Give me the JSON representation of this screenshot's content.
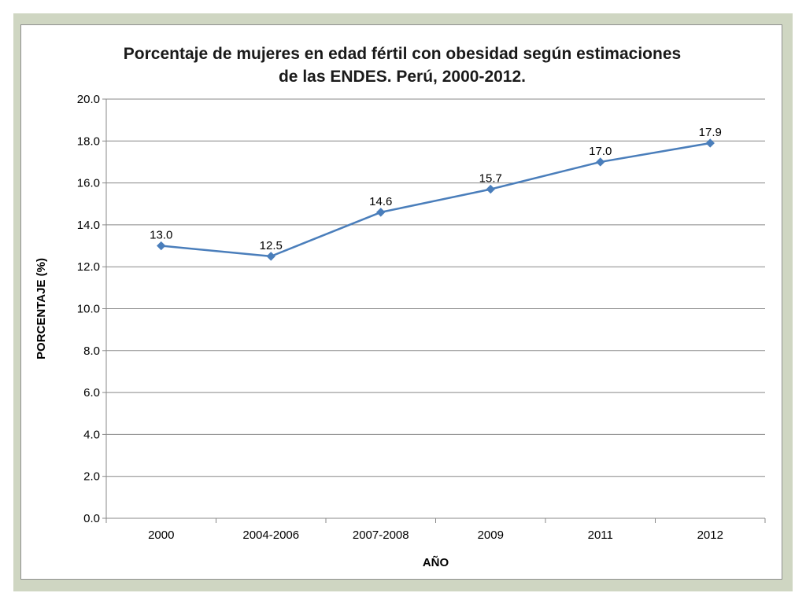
{
  "chart_data": {
    "type": "line",
    "title_lines": [
      "Porcentaje de mujeres en edad fértil con obesidad según estimaciones",
      "de las ENDES. Perú, 2000-2012."
    ],
    "xlabel": "AÑO",
    "ylabel": "PORCENTAJE (%)",
    "categories": [
      "2000",
      "2004-2006",
      "2007-2008",
      "2009",
      "2011",
      "2012"
    ],
    "series": [
      {
        "values": [
          13.0,
          12.5,
          14.6,
          15.7,
          17.0,
          17.9
        ],
        "data_labels": [
          "13.0",
          "12.5",
          "14.6",
          "15.7",
          "17.0",
          "17.9"
        ],
        "color": "#4a7ebb",
        "marker": "diamond"
      }
    ],
    "ylim": [
      0,
      20
    ],
    "y_ticks": [
      "0.0",
      "2.0",
      "4.0",
      "6.0",
      "8.0",
      "10.0",
      "12.0",
      "14.0",
      "16.0",
      "18.0",
      "20.0"
    ],
    "grid": true,
    "legend": "none"
  },
  "colors": {
    "frame": "#cfd6c2",
    "gridline": "#888888",
    "series": "#4a7ebb"
  }
}
